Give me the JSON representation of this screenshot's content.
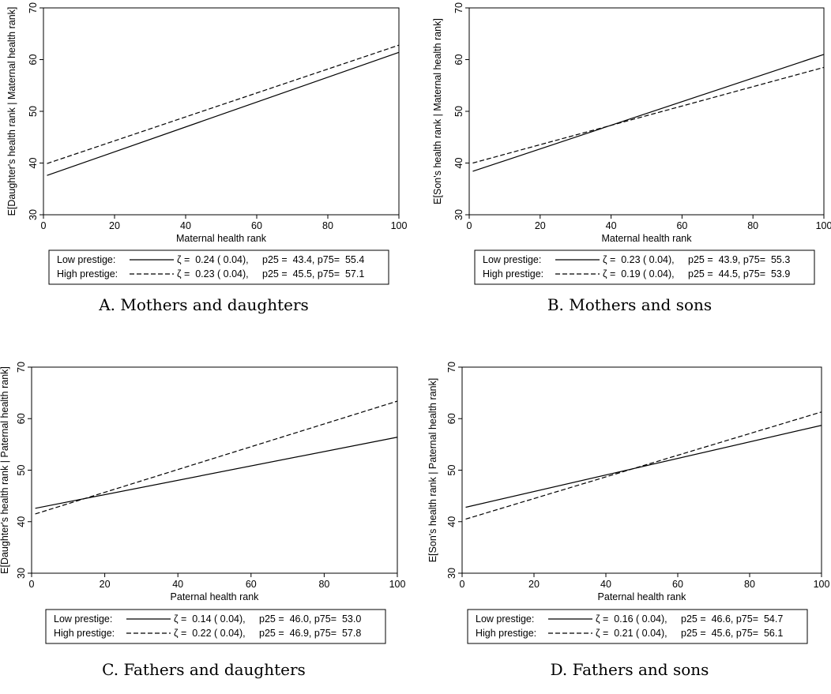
{
  "figure": {
    "caption_count": 4
  },
  "chart_data": [
    {
      "type": "line",
      "caption": "A. Mothers and daughters",
      "xlabel": "Maternal health rank",
      "ylabel": "E[Daughter's health rank | Maternal health rank]",
      "xlim": [
        0,
        100
      ],
      "ylim": [
        30,
        70
      ],
      "xticks": [
        0,
        20,
        40,
        60,
        80,
        100
      ],
      "yticks": [
        30,
        40,
        50,
        60,
        70
      ],
      "grid": false,
      "legend_position": "bottom",
      "series": [
        {
          "name": "Low prestige",
          "style": "solid",
          "x": [
            1,
            100
          ],
          "y": [
            37.6,
            61.4
          ],
          "stats": "ζ =  0.24 ( 0.04),     p25 =  43.4, p75=  55.4"
        },
        {
          "name": "High prestige",
          "style": "dashed",
          "x": [
            1,
            100
          ],
          "y": [
            39.9,
            62.8
          ],
          "stats": "ζ =  0.23 ( 0.04),     p25 =  45.5, p75=  57.1"
        }
      ]
    },
    {
      "type": "line",
      "caption": "B. Mothers and sons",
      "xlabel": "Maternal health rank",
      "ylabel": "E[Son's health rank | Maternal health rank]",
      "xlim": [
        0,
        100
      ],
      "ylim": [
        30,
        70
      ],
      "xticks": [
        0,
        20,
        40,
        60,
        80,
        100
      ],
      "yticks": [
        30,
        40,
        50,
        60,
        70
      ],
      "grid": false,
      "legend_position": "bottom",
      "series": [
        {
          "name": "Low prestige",
          "style": "solid",
          "x": [
            1,
            100
          ],
          "y": [
            38.4,
            61.0
          ],
          "stats": "ζ =  0.23 ( 0.04),     p25 =  43.9, p75=  55.3"
        },
        {
          "name": "High prestige",
          "style": "dashed",
          "x": [
            1,
            100
          ],
          "y": [
            40.0,
            58.5
          ],
          "stats": "ζ =  0.19 ( 0.04),     p25 =  44.5, p75=  53.9"
        }
      ]
    },
    {
      "type": "line",
      "caption": "C. Fathers and daughters",
      "xlabel": "Paternal health rank",
      "ylabel": "E[Daughter's health rank | Paternal health rank]",
      "xlim": [
        0,
        100
      ],
      "ylim": [
        30,
        70
      ],
      "xticks": [
        0,
        20,
        40,
        60,
        80,
        100
      ],
      "yticks": [
        30,
        40,
        50,
        60,
        70
      ],
      "grid": false,
      "legend_position": "bottom",
      "series": [
        {
          "name": "Low prestige",
          "style": "solid",
          "x": [
            1,
            100
          ],
          "y": [
            42.6,
            56.4
          ],
          "stats": "ζ =  0.14 ( 0.04),     p25 =  46.0, p75=  53.0"
        },
        {
          "name": "High prestige",
          "style": "dashed",
          "x": [
            1,
            100
          ],
          "y": [
            41.5,
            63.4
          ],
          "stats": "ζ =  0.22 ( 0.04),     p25 =  46.9, p75=  57.8"
        }
      ]
    },
    {
      "type": "line",
      "caption": "D. Fathers and sons",
      "xlabel": "Paternal health rank",
      "ylabel": "E[Son's health rank | Paternal health rank]",
      "xlim": [
        0,
        100
      ],
      "ylim": [
        30,
        70
      ],
      "xticks": [
        0,
        20,
        40,
        60,
        80,
        100
      ],
      "yticks": [
        30,
        40,
        50,
        60,
        70
      ],
      "grid": false,
      "legend_position": "bottom",
      "series": [
        {
          "name": "Low prestige",
          "style": "solid",
          "x": [
            1,
            100
          ],
          "y": [
            42.8,
            58.7
          ],
          "stats": "ζ =  0.16 ( 0.04),     p25 =  46.6, p75=  54.7"
        },
        {
          "name": "High prestige",
          "style": "dashed",
          "x": [
            1,
            100
          ],
          "y": [
            40.5,
            61.3
          ],
          "stats": "ζ =  0.21 ( 0.04),     p25 =  45.6, p75=  56.1"
        }
      ]
    }
  ]
}
